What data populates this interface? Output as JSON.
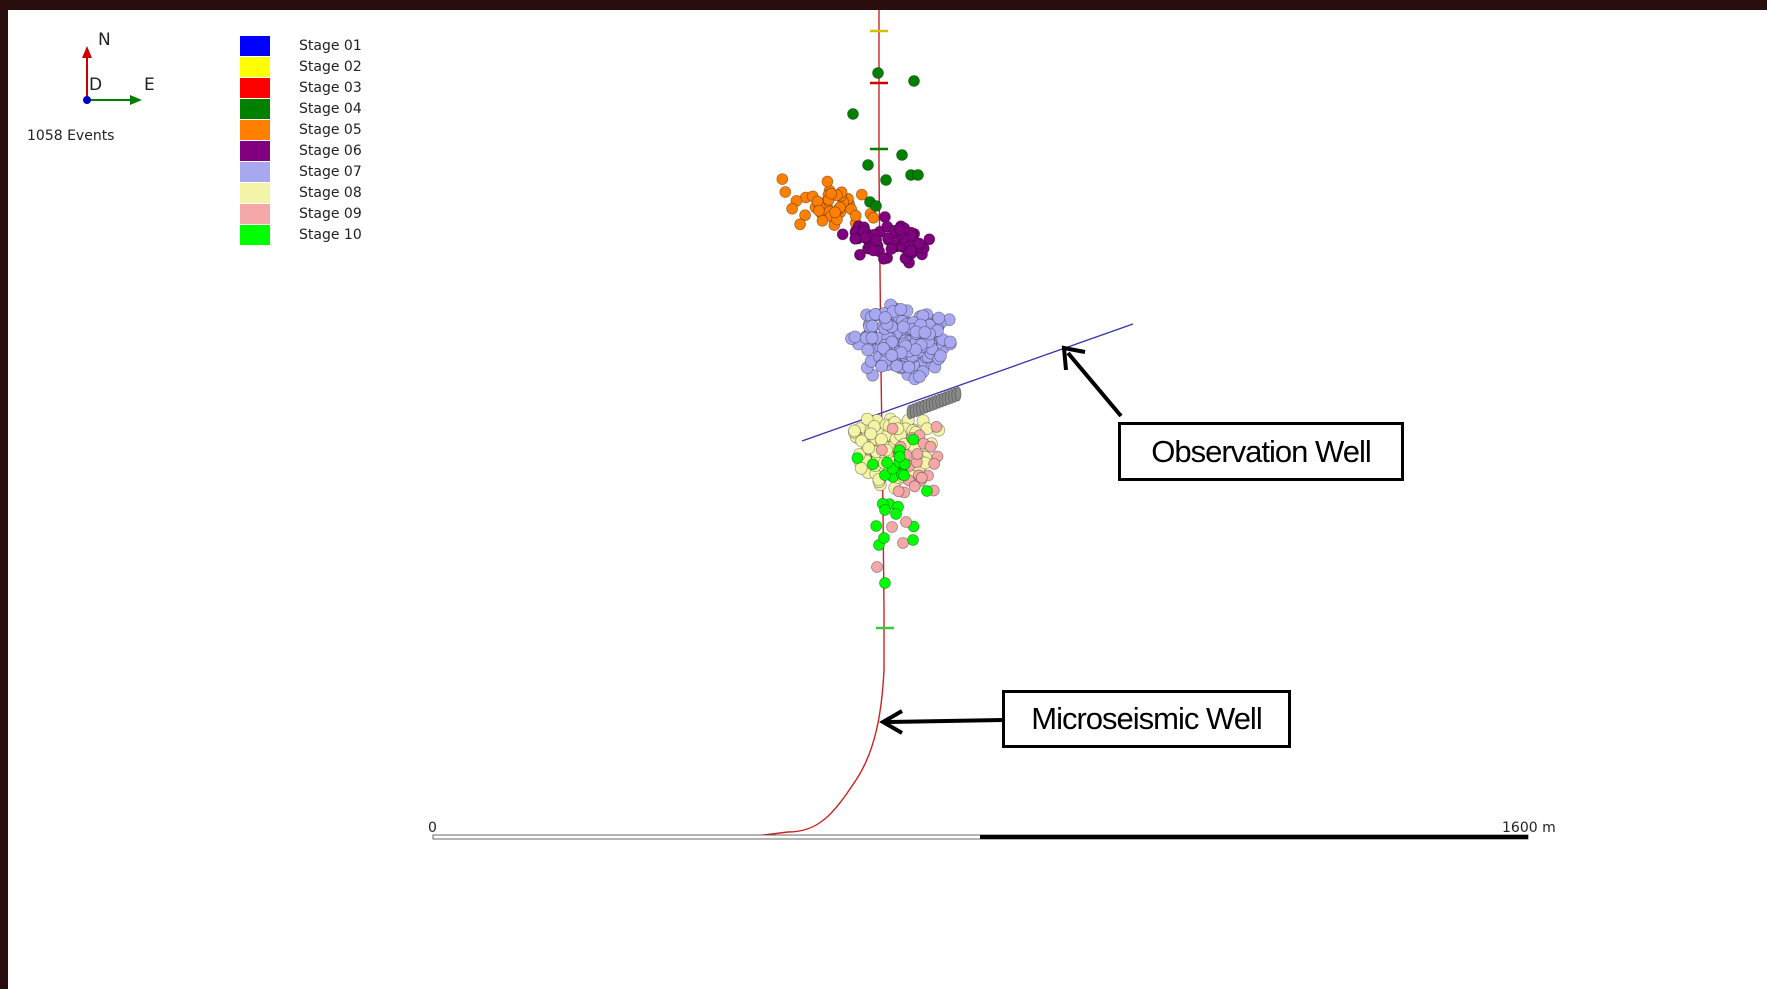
{
  "compass": {
    "north_label": "N",
    "east_label": "E",
    "down_label": "D",
    "north_color": "#cc0000",
    "east_color": "#008000",
    "down_color": "#0000cc"
  },
  "event_count_label": "1058 Events",
  "legend": [
    {
      "label": "Stage 01",
      "color": "#0000ff"
    },
    {
      "label": "Stage 02",
      "color": "#ffff00"
    },
    {
      "label": "Stage 03",
      "color": "#ff0000"
    },
    {
      "label": "Stage 04",
      "color": "#008000"
    },
    {
      "label": "Stage 05",
      "color": "#ff8000"
    },
    {
      "label": "Stage 06",
      "color": "#800080"
    },
    {
      "label": "Stage 07",
      "color": "#a8a8f0"
    },
    {
      "label": "Stage 08",
      "color": "#f4f4a8"
    },
    {
      "label": "Stage 09",
      "color": "#f4a8a8"
    },
    {
      "label": "Stage 10",
      "color": "#00ff00"
    }
  ],
  "callouts": {
    "observation_well": "Observation Well",
    "microseismic_well": "Microseismic Well"
  },
  "scale_bar": {
    "start_label": "0",
    "end_label": "1600 m"
  },
  "colors": {
    "microseismic_well": "#cc2222",
    "observation_well": "#3333aa",
    "background": "#ffffff",
    "frame": "#2a0e0e"
  }
}
